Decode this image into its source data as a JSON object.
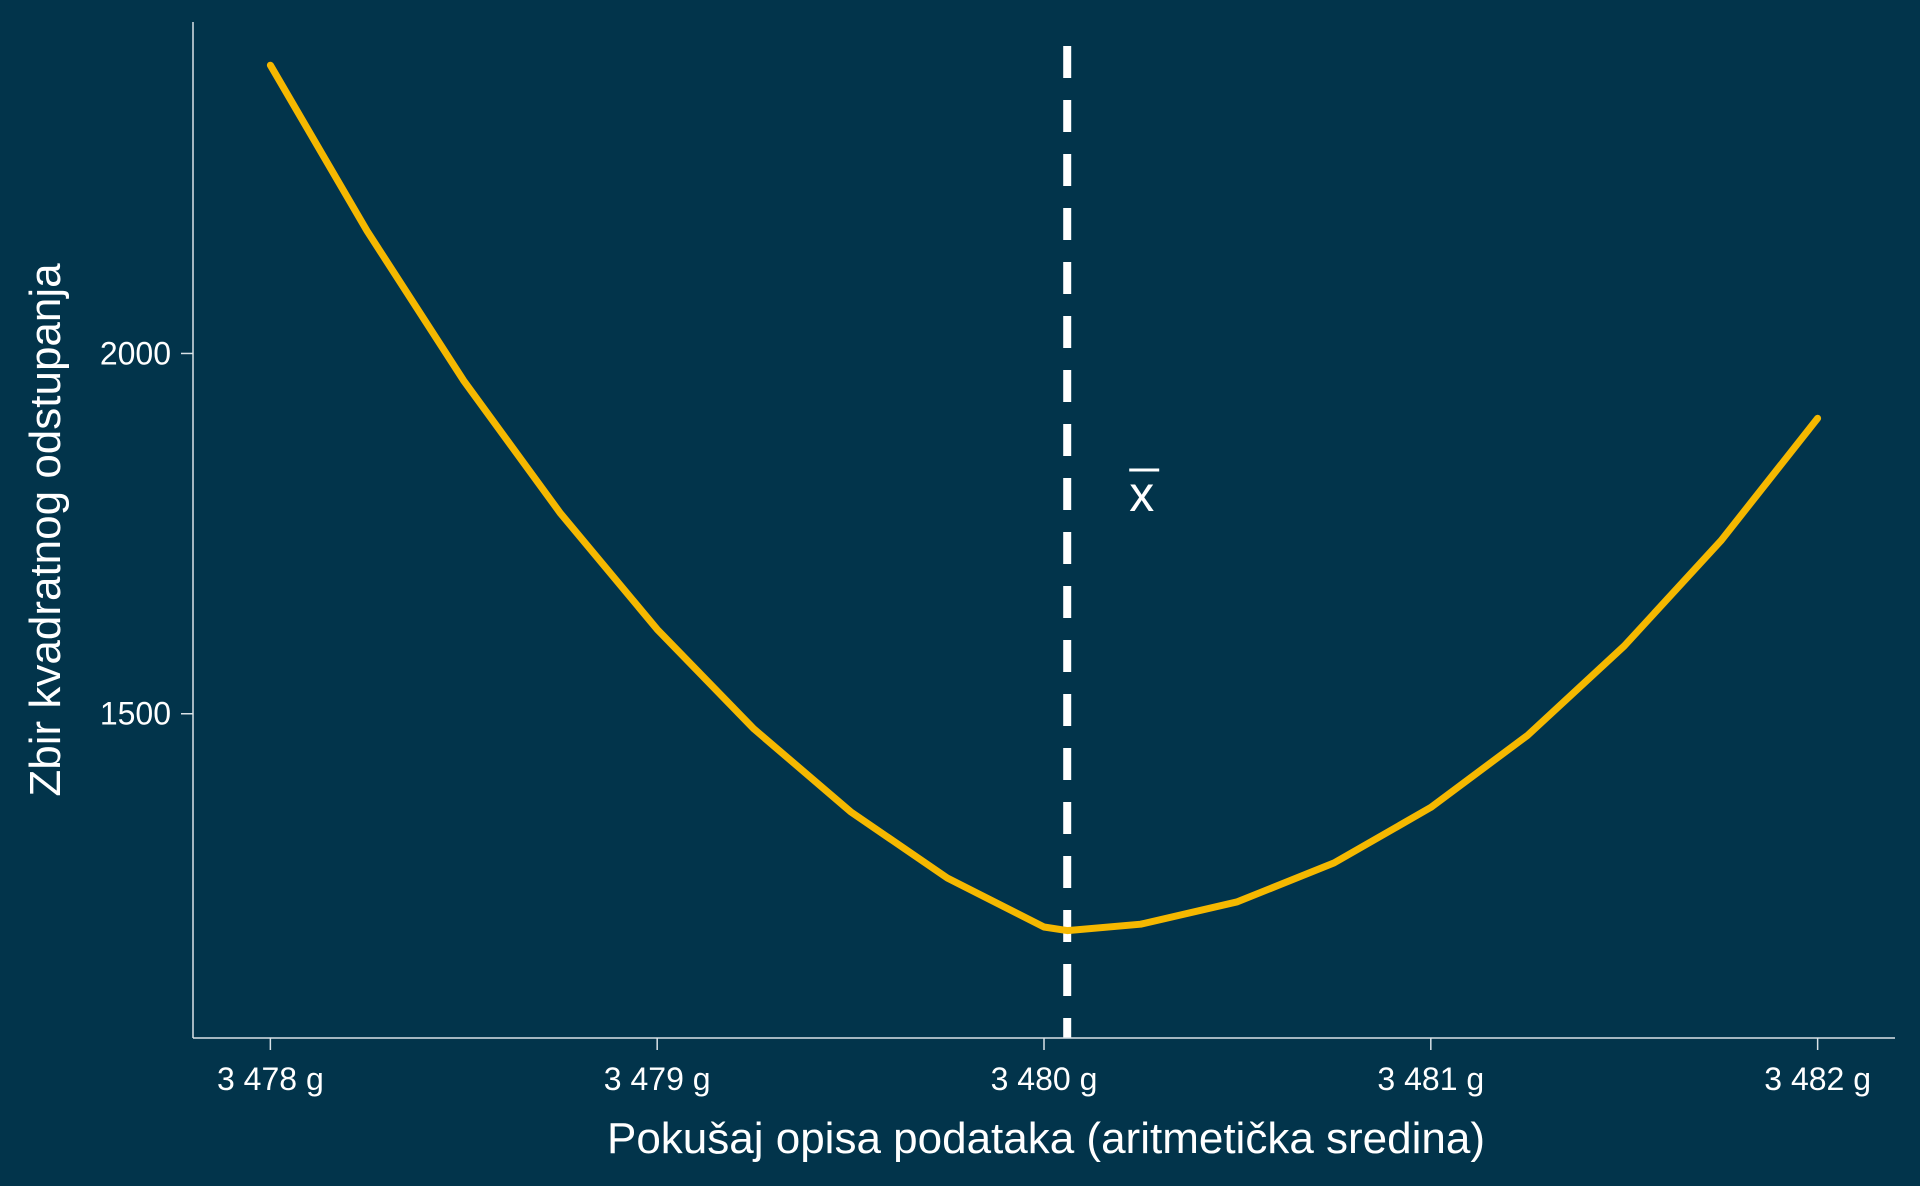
{
  "chart_data": {
    "type": "line",
    "title": "",
    "xlabel": "Pokušaj opisa podataka (aritmetička sredina)",
    "ylabel": "Zbir kvadratnog odstupanja",
    "xlim": [
      3477.8,
      3482.2
    ],
    "ylim": [
      1050,
      2460
    ],
    "x_ticks": [
      3478,
      3479,
      3480,
      3481,
      3482
    ],
    "x_tick_labels": [
      "3 478 g",
      "3 479 g",
      "3 480 g",
      "3 481 g",
      "3 482 g"
    ],
    "y_ticks": [
      1500,
      2000
    ],
    "y_tick_labels": [
      "1500",
      "2000"
    ],
    "grid": false,
    "series": [
      {
        "color": "#f5b800",
        "x": [
          3478.0,
          3478.25,
          3478.5,
          3478.75,
          3479.0,
          3479.25,
          3479.5,
          3479.75,
          3480.0,
          3480.06,
          3480.25,
          3480.5,
          3480.75,
          3481.0,
          3481.25,
          3481.5,
          3481.75,
          3482.0
        ],
        "y": [
          2400,
          2170,
          1962,
          1778,
          1617,
          1479,
          1364,
          1272,
          1204,
          1199,
          1208,
          1239,
          1293,
          1370,
          1470,
          1594,
          1740,
          1910
        ]
      }
    ],
    "reference_line": {
      "x": 3480.06,
      "color": "#ffffff",
      "style": "dashed",
      "label": "x̄"
    }
  }
}
